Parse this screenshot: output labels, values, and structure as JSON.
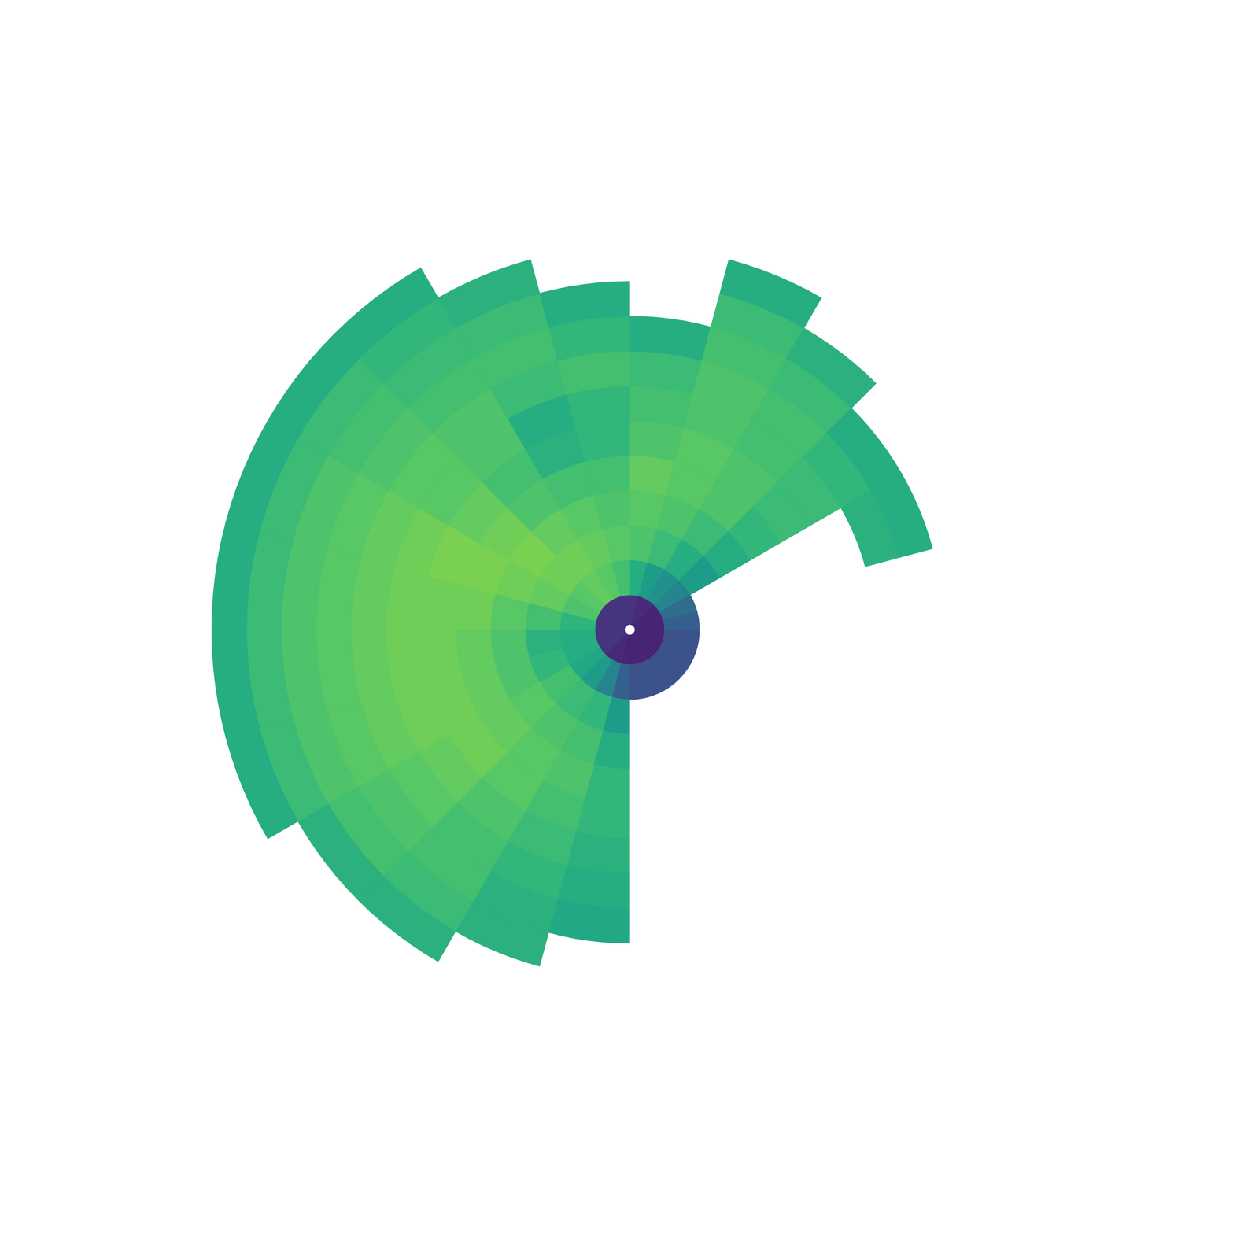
{
  "chart_data": {
    "type": "polar_heatmap",
    "color": "viridis",
    "color_range": [
      0,
      1
    ],
    "tick_labels": false,
    "azimuth_bins": [
      0,
      15,
      30,
      45,
      60,
      75,
      90,
      105,
      120,
      135,
      150,
      165,
      180,
      195,
      210,
      225,
      240,
      255,
      270,
      285,
      300,
      315,
      330,
      345,
      360
    ],
    "range_bins": [
      0,
      1,
      2,
      3,
      4,
      5,
      6,
      7,
      8,
      9,
      10,
      11,
      12
    ],
    "cells": [
      [
        0.15,
        0.62,
        0.72,
        0.74,
        0.76,
        0.72,
        0.7,
        0.68,
        0.62,
        null,
        null,
        null
      ],
      [
        0.12,
        0.55,
        0.68,
        0.72,
        0.74,
        0.74,
        0.72,
        0.72,
        0.7,
        0.68,
        0.62,
        null
      ],
      [
        0.12,
        0.5,
        0.62,
        0.68,
        0.72,
        0.72,
        0.7,
        0.7,
        0.68,
        0.64,
        null,
        null
      ],
      [
        0.1,
        0.45,
        0.55,
        0.62,
        0.66,
        0.68,
        0.68,
        0.66,
        0.62,
        null,
        null,
        null
      ],
      [
        0.1,
        0.35,
        null,
        null,
        null,
        null,
        null,
        0.64,
        0.62,
        null,
        null,
        null
      ],
      [
        0.1,
        0.3,
        null,
        null,
        null,
        null,
        null,
        null,
        null,
        null,
        null,
        null
      ],
      [
        0.1,
        0.25,
        null,
        null,
        null,
        null,
        null,
        null,
        null,
        null,
        null,
        null
      ],
      [
        0.1,
        0.25,
        null,
        null,
        null,
        null,
        null,
        null,
        null,
        null,
        null,
        null
      ],
      [
        0.1,
        0.25,
        null,
        null,
        null,
        null,
        null,
        null,
        null,
        null,
        null,
        null
      ],
      [
        0.1,
        0.25,
        null,
        null,
        null,
        null,
        null,
        null,
        null,
        null,
        null,
        null
      ],
      [
        0.1,
        0.25,
        null,
        null,
        null,
        null,
        null,
        null,
        null,
        null,
        null,
        null
      ],
      [
        0.1,
        0.25,
        null,
        null,
        null,
        null,
        null,
        null,
        null,
        null,
        null,
        null
      ],
      [
        0.1,
        0.3,
        0.55,
        0.62,
        0.66,
        0.66,
        0.64,
        0.62,
        0.6,
        null,
        null,
        null
      ],
      [
        0.12,
        0.45,
        0.66,
        0.7,
        0.72,
        0.7,
        0.68,
        0.66,
        0.64,
        0.64,
        null,
        null
      ],
      [
        0.12,
        0.55,
        0.68,
        0.72,
        0.74,
        0.74,
        0.72,
        0.7,
        0.7,
        0.68,
        0.64,
        null
      ],
      [
        0.15,
        0.6,
        0.7,
        0.74,
        0.76,
        0.78,
        0.76,
        0.74,
        0.72,
        0.7,
        0.64,
        null
      ],
      [
        0.15,
        0.62,
        0.66,
        0.72,
        0.76,
        0.78,
        0.78,
        0.76,
        0.74,
        0.72,
        0.68,
        0.62
      ],
      [
        0.15,
        0.62,
        0.64,
        0.72,
        0.76,
        0.78,
        0.78,
        0.76,
        0.74,
        0.72,
        0.68,
        0.62
      ],
      [
        0.15,
        0.65,
        0.7,
        0.74,
        0.78,
        0.78,
        0.78,
        0.76,
        0.74,
        0.72,
        0.68,
        0.62
      ],
      [
        0.15,
        0.72,
        0.76,
        0.78,
        0.8,
        0.8,
        0.78,
        0.76,
        0.74,
        0.72,
        0.68,
        0.62
      ],
      [
        0.15,
        0.74,
        0.78,
        0.8,
        0.78,
        0.76,
        0.74,
        0.74,
        0.72,
        0.7,
        0.68,
        0.62
      ],
      [
        0.15,
        0.76,
        0.78,
        0.76,
        0.72,
        0.7,
        0.72,
        0.72,
        0.7,
        0.68,
        0.66,
        0.62
      ],
      [
        0.15,
        0.74,
        0.76,
        0.74,
        0.7,
        0.64,
        0.62,
        0.68,
        0.7,
        0.68,
        0.64,
        null
      ],
      [
        0.15,
        0.7,
        0.74,
        0.72,
        0.7,
        0.66,
        0.66,
        0.7,
        0.66,
        0.62,
        null,
        null
      ]
    ]
  }
}
